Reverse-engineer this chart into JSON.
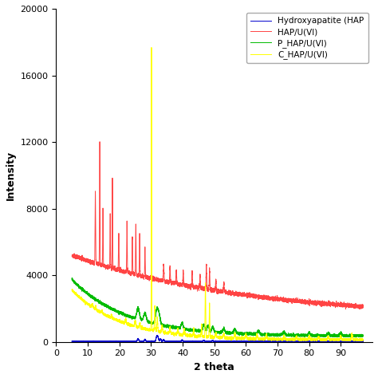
{
  "title": "",
  "xlabel": "2 theta",
  "ylabel": "Intensity",
  "xlim": [
    0,
    100
  ],
  "ylim": [
    0,
    20000
  ],
  "yticks": [
    0,
    4000,
    8000,
    12000,
    16000,
    20000
  ],
  "xticks": [
    0,
    10,
    20,
    30,
    40,
    50,
    60,
    70,
    80,
    90
  ],
  "legend_labels": [
    "Hydroxyapatite (HAP",
    "HAP/U(VI)",
    "P_HAP/U(VI)",
    "C_HAP/U(VI)"
  ],
  "colors": {
    "hap": "#0000cc",
    "hap_u": "#ff4444",
    "p_hap": "#00bb00",
    "c_hap": "#ffff00"
  },
  "background_color": "#ffffff",
  "figsize": [
    4.74,
    4.74
  ],
  "dpi": 100
}
